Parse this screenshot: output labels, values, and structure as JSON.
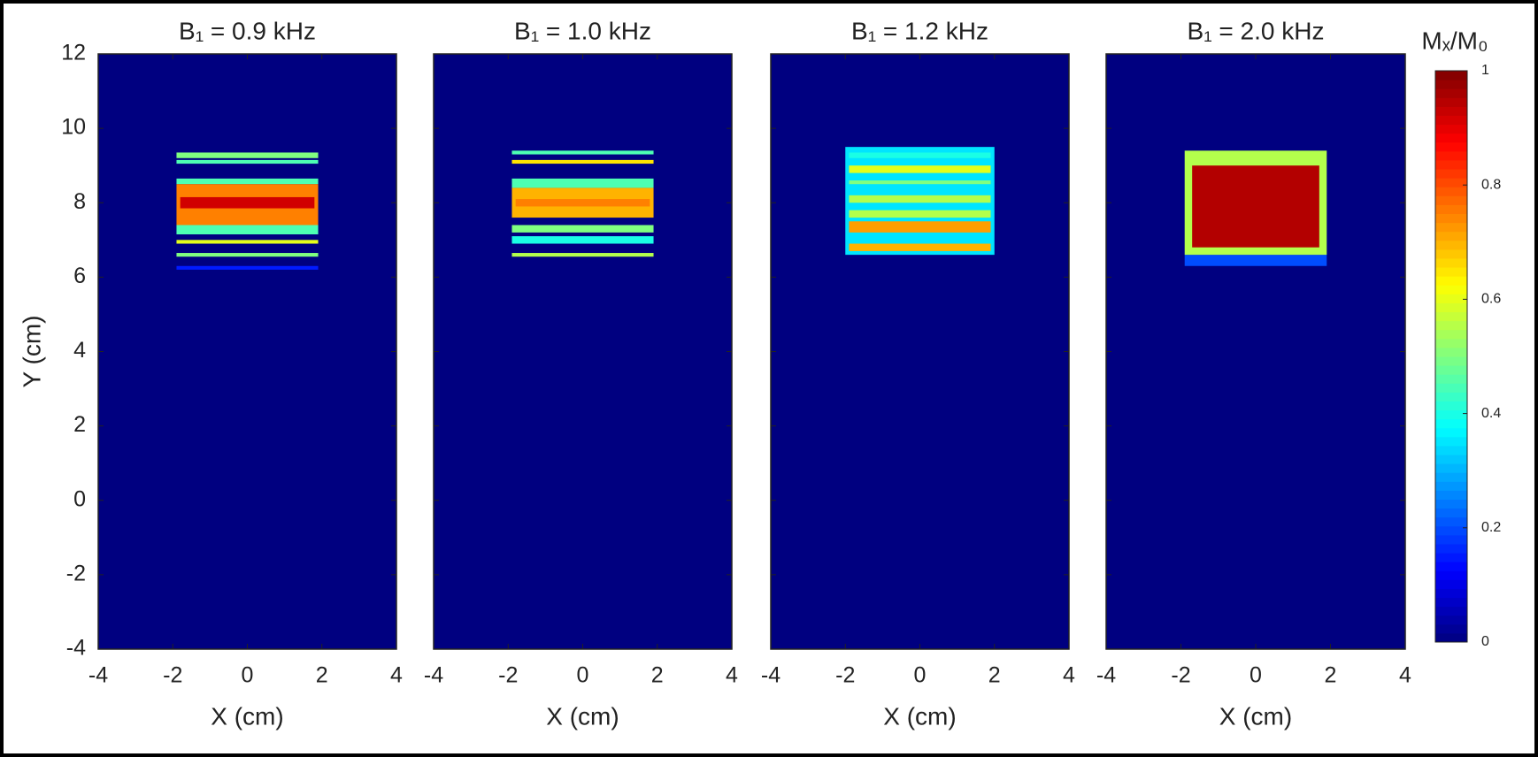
{
  "chart_data": [
    {
      "type": "heatmap",
      "title": "B₁ = 0.9 kHz",
      "x_label": "X (cm)",
      "y_label": "Y (cm)",
      "xlim": [
        -4,
        4
      ],
      "ylim": [
        -4,
        12
      ],
      "xticks": [
        -4,
        -2,
        0,
        2,
        4
      ],
      "yticks": [
        -4,
        -2,
        0,
        2,
        4,
        6,
        8,
        10,
        12
      ],
      "background": 0,
      "cells": [
        {
          "x": [
            -1.9,
            1.9
          ],
          "y": [
            9.2,
            9.35
          ],
          "value": 0.5
        },
        {
          "x": [
            -1.9,
            1.9
          ],
          "y": [
            9.05,
            9.15
          ],
          "value": 0.45
        },
        {
          "x": [
            -1.9,
            1.9
          ],
          "y": [
            8.5,
            8.65
          ],
          "value": 0.45
        },
        {
          "x": [
            -1.9,
            1.9
          ],
          "y": [
            7.4,
            8.5
          ],
          "value": 0.75
        },
        {
          "x": [
            -1.8,
            1.8
          ],
          "y": [
            7.85,
            8.15
          ],
          "value": 0.92
        },
        {
          "x": [
            -1.9,
            1.9
          ],
          "y": [
            7.15,
            7.4
          ],
          "value": 0.45
        },
        {
          "x": [
            -1.9,
            1.9
          ],
          "y": [
            6.9,
            7.0
          ],
          "value": 0.6
        },
        {
          "x": [
            -1.9,
            1.9
          ],
          "y": [
            6.55,
            6.65
          ],
          "value": 0.5
        },
        {
          "x": [
            -1.9,
            1.9
          ],
          "y": [
            6.2,
            6.3
          ],
          "value": 0.15
        }
      ]
    },
    {
      "type": "heatmap",
      "title": "B₁ = 1.0 kHz",
      "x_label": "X (cm)",
      "xlim": [
        -4,
        4
      ],
      "ylim": [
        -4,
        12
      ],
      "xticks": [
        -4,
        -2,
        0,
        2,
        4
      ],
      "yticks": [
        -4,
        -2,
        0,
        2,
        4,
        6,
        8,
        10,
        12
      ],
      "background": 0,
      "cells": [
        {
          "x": [
            -1.9,
            1.9
          ],
          "y": [
            9.3,
            9.4
          ],
          "value": 0.45
        },
        {
          "x": [
            -1.9,
            1.9
          ],
          "y": [
            9.05,
            9.15
          ],
          "value": 0.65
        },
        {
          "x": [
            -1.9,
            1.9
          ],
          "y": [
            8.4,
            8.65
          ],
          "value": 0.45
        },
        {
          "x": [
            -1.9,
            1.9
          ],
          "y": [
            7.6,
            8.4
          ],
          "value": 0.7
        },
        {
          "x": [
            -1.8,
            1.8
          ],
          "y": [
            7.9,
            8.1
          ],
          "value": 0.75
        },
        {
          "x": [
            -1.9,
            1.9
          ],
          "y": [
            7.2,
            7.4
          ],
          "value": 0.5
        },
        {
          "x": [
            -1.9,
            1.9
          ],
          "y": [
            6.9,
            7.1
          ],
          "value": 0.4
        },
        {
          "x": [
            -1.9,
            1.9
          ],
          "y": [
            6.55,
            6.65
          ],
          "value": 0.55
        }
      ]
    },
    {
      "type": "heatmap",
      "title": "B₁ = 1.2 kHz",
      "x_label": "X (cm)",
      "xlim": [
        -4,
        4
      ],
      "ylim": [
        -4,
        12
      ],
      "xticks": [
        -4,
        -2,
        0,
        2,
        4
      ],
      "yticks": [
        -4,
        -2,
        0,
        2,
        4,
        6,
        8,
        10,
        12
      ],
      "background": 0,
      "cells": [
        {
          "x": [
            -2.0,
            2.0
          ],
          "y": [
            6.6,
            9.5
          ],
          "value": 0.35
        },
        {
          "x": [
            -1.9,
            1.9
          ],
          "y": [
            9.2,
            9.35
          ],
          "value": 0.4
        },
        {
          "x": [
            -1.9,
            1.9
          ],
          "y": [
            8.8,
            9.0
          ],
          "value": 0.6
        },
        {
          "x": [
            -1.9,
            1.9
          ],
          "y": [
            8.5,
            8.6
          ],
          "value": 0.5
        },
        {
          "x": [
            -1.9,
            1.9
          ],
          "y": [
            8.0,
            8.2
          ],
          "value": 0.55
        },
        {
          "x": [
            -1.9,
            1.9
          ],
          "y": [
            7.6,
            7.8
          ],
          "value": 0.55
        },
        {
          "x": [
            -1.9,
            1.9
          ],
          "y": [
            7.2,
            7.5
          ],
          "value": 0.72
        },
        {
          "x": [
            -1.9,
            1.9
          ],
          "y": [
            6.7,
            6.9
          ],
          "value": 0.7
        }
      ]
    },
    {
      "type": "heatmap",
      "title": "B₁ = 2.0 kHz",
      "x_label": "X (cm)",
      "xlim": [
        -4,
        4
      ],
      "ylim": [
        -4,
        12
      ],
      "xticks": [
        -4,
        -2,
        0,
        2,
        4
      ],
      "yticks": [
        -4,
        -2,
        0,
        2,
        4,
        6,
        8,
        10,
        12
      ],
      "background": 0,
      "cells": [
        {
          "x": [
            -1.9,
            1.9
          ],
          "y": [
            6.3,
            6.6
          ],
          "value": 0.2
        },
        {
          "x": [
            -1.9,
            1.9
          ],
          "y": [
            6.6,
            9.4
          ],
          "value": 0.55
        },
        {
          "x": [
            -1.7,
            1.7
          ],
          "y": [
            6.8,
            9.0
          ],
          "value": 0.95
        }
      ]
    },
    {
      "type": "colorbar",
      "title": "Mₓ/M₀",
      "colormap": "jet",
      "clim": [
        0,
        1
      ],
      "ticks": [
        0,
        0.2,
        0.4,
        0.6,
        0.8,
        1
      ]
    }
  ]
}
